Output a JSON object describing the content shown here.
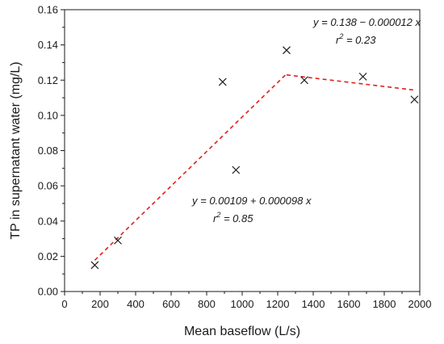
{
  "chart_data": {
    "type": "scatter",
    "xlabel": "Mean baseflow (L/s)",
    "ylabel": "TP in supernatant water (mg/L)",
    "xlim": [
      0,
      2000
    ],
    "ylim": [
      0,
      0.16
    ],
    "x_ticks": [
      "0",
      "200",
      "400",
      "600",
      "800",
      "1000",
      "1200",
      "1400",
      "1600",
      "1800",
      "2000"
    ],
    "y_ticks": [
      "0.00",
      "0.02",
      "0.04",
      "0.06",
      "0.08",
      "0.10",
      "0.12",
      "0.14",
      "0.16"
    ],
    "grid": false,
    "marker": "x",
    "marker_color": "#1a1a1a",
    "fit_color": "#e0201b",
    "points": [
      {
        "x": 170,
        "y": 0.015
      },
      {
        "x": 300,
        "y": 0.029
      },
      {
        "x": 890,
        "y": 0.119
      },
      {
        "x": 965,
        "y": 0.069
      },
      {
        "x": 1250,
        "y": 0.137
      },
      {
        "x": 1350,
        "y": 0.12
      },
      {
        "x": 1680,
        "y": 0.122
      },
      {
        "x": 1970,
        "y": 0.109
      }
    ],
    "fits": [
      {
        "x_start": 170,
        "x_end": 1250,
        "intercept": 0.00109,
        "slope": 9.8e-05
      },
      {
        "x_start": 1250,
        "x_end": 1970,
        "intercept": 0.138,
        "slope": -1.2e-05
      }
    ],
    "annotations": [
      {
        "equation": "y = 0.138 − 0.000012 x",
        "r2_prefix": "r",
        "r2_sup": "2",
        "r2_value": " = 0.23"
      },
      {
        "equation": "y = 0.00109 + 0.000098 x",
        "r2_prefix": "r",
        "r2_sup": "2",
        "r2_value": " = 0.85"
      }
    ]
  }
}
